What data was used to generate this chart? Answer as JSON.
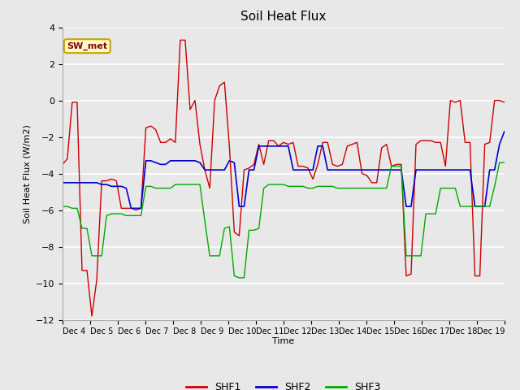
{
  "title": "Soil Heat Flux",
  "ylabel": "Soil Heat Flux (W/m2)",
  "xlabel": "Time",
  "ylim": [
    -12,
    4
  ],
  "yticks": [
    -12,
    -10,
    -8,
    -6,
    -4,
    -2,
    0,
    2,
    4
  ],
  "background_color": "#e8e8e8",
  "plot_bg_color": "#e8e8e8",
  "grid_color": "#ffffff",
  "annotation_text": "SW_met",
  "annotation_color": "#8b0000",
  "annotation_bg": "#ffffcc",
  "annotation_edge": "#c8a000",
  "colors": {
    "SHF1": "#cc0000",
    "SHF2": "#0000cc",
    "SHF3": "#00aa00"
  },
  "x_tick_labels": [
    "Dec 4",
    "Dec 5",
    "Dec 6",
    "Dec 7",
    "Dec 8",
    "Dec 9",
    "Dec 10",
    "Dec 11",
    "Dec 12",
    "Dec 13",
    "Dec 14",
    "Dec 15",
    "Dec 16",
    "Dec 17",
    "Dec 18",
    "Dec 19"
  ],
  "shf1": [
    -3.5,
    -3.2,
    -0.1,
    -0.1,
    -9.3,
    -9.3,
    -11.8,
    -9.8,
    -4.4,
    -4.4,
    -4.3,
    -4.4,
    -5.9,
    -5.9,
    -5.9,
    -6.0,
    -5.9,
    -1.5,
    -1.4,
    -1.6,
    -2.3,
    -2.3,
    -2.1,
    -2.3,
    3.3,
    3.3,
    -0.5,
    0.0,
    -2.4,
    -3.8,
    -4.8,
    0.0,
    0.8,
    1.0,
    -2.5,
    -7.2,
    -7.4,
    -3.8,
    -3.7,
    -3.5,
    -2.4,
    -3.5,
    -2.2,
    -2.2,
    -2.5,
    -2.3,
    -2.4,
    -2.3,
    -3.6,
    -3.6,
    -3.7,
    -4.3,
    -3.5,
    -2.3,
    -2.3,
    -3.5,
    -3.6,
    -3.5,
    -2.5,
    -2.4,
    -2.3,
    -4.0,
    -4.1,
    -4.5,
    -4.5,
    -2.6,
    -2.4,
    -3.6,
    -3.5,
    -3.5,
    -9.6,
    -9.5,
    -2.4,
    -2.2,
    -2.2,
    -2.2,
    -2.3,
    -2.3,
    -3.6,
    0.0,
    -0.1,
    0.0,
    -2.3,
    -2.3,
    -9.6,
    -9.6,
    -2.4,
    -2.3,
    -0.0,
    -0.0,
    -0.1
  ],
  "shf2": [
    -4.5,
    -4.5,
    -4.5,
    -4.5,
    -4.5,
    -4.5,
    -4.5,
    -4.5,
    -4.6,
    -4.6,
    -4.7,
    -4.7,
    -4.7,
    -4.8,
    -5.9,
    -5.9,
    -5.9,
    -3.3,
    -3.3,
    -3.4,
    -3.5,
    -3.5,
    -3.3,
    -3.3,
    -3.3,
    -3.3,
    -3.3,
    -3.3,
    -3.4,
    -3.8,
    -3.8,
    -3.8,
    -3.8,
    -3.8,
    -3.3,
    -3.4,
    -5.8,
    -5.8,
    -3.8,
    -3.8,
    -2.5,
    -2.5,
    -2.5,
    -2.5,
    -2.5,
    -2.5,
    -2.5,
    -3.8,
    -3.8,
    -3.8,
    -3.8,
    -3.8,
    -2.5,
    -2.5,
    -3.8,
    -3.8,
    -3.8,
    -3.8,
    -3.8,
    -3.8,
    -3.8,
    -3.8,
    -3.8,
    -3.8,
    -3.8,
    -3.8,
    -3.8,
    -3.8,
    -3.8,
    -3.8,
    -5.8,
    -5.8,
    -3.8,
    -3.8,
    -3.8,
    -3.8,
    -3.8,
    -3.8,
    -3.8,
    -3.8,
    -3.8,
    -3.8,
    -3.8,
    -3.8,
    -5.8,
    -5.8,
    -5.8,
    -3.8,
    -3.8,
    -2.4,
    -1.7
  ],
  "shf3": [
    -5.8,
    -5.8,
    -5.9,
    -5.9,
    -7.0,
    -7.0,
    -8.5,
    -8.5,
    -8.5,
    -6.3,
    -6.2,
    -6.2,
    -6.2,
    -6.3,
    -6.3,
    -6.3,
    -6.3,
    -4.7,
    -4.7,
    -4.8,
    -4.8,
    -4.8,
    -4.8,
    -4.6,
    -4.6,
    -4.6,
    -4.6,
    -4.6,
    -4.6,
    -6.6,
    -8.5,
    -8.5,
    -8.5,
    -7.0,
    -6.9,
    -9.6,
    -9.7,
    -9.7,
    -7.1,
    -7.1,
    -7.0,
    -4.8,
    -4.6,
    -4.6,
    -4.6,
    -4.6,
    -4.7,
    -4.7,
    -4.7,
    -4.7,
    -4.8,
    -4.8,
    -4.7,
    -4.7,
    -4.7,
    -4.7,
    -4.8,
    -4.8,
    -4.8,
    -4.8,
    -4.8,
    -4.8,
    -4.8,
    -4.8,
    -4.8,
    -4.8,
    -4.8,
    -3.6,
    -3.6,
    -3.6,
    -8.5,
    -8.5,
    -8.5,
    -8.5,
    -6.2,
    -6.2,
    -6.2,
    -4.8,
    -4.8,
    -4.8,
    -4.8,
    -5.8,
    -5.8,
    -5.8,
    -5.8,
    -5.8,
    -5.8,
    -5.8,
    -4.7,
    -3.4,
    -3.4
  ]
}
